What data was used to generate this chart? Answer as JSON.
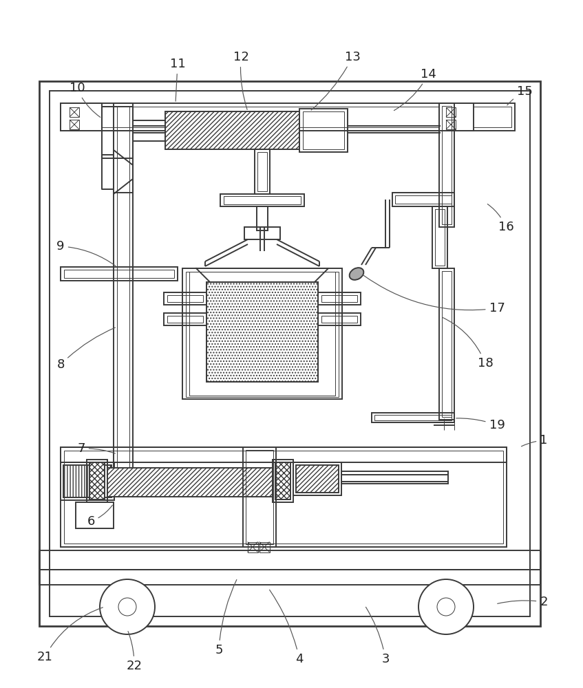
{
  "bg_color": "#ffffff",
  "line_color": "#3a3a3a",
  "lw": 1.4,
  "lw_thin": 0.7,
  "lw_thick": 2.0,
  "label_fontsize": 13,
  "label_color": "#222222",
  "figsize": [
    8.47,
    10.0
  ],
  "dpi": 100
}
